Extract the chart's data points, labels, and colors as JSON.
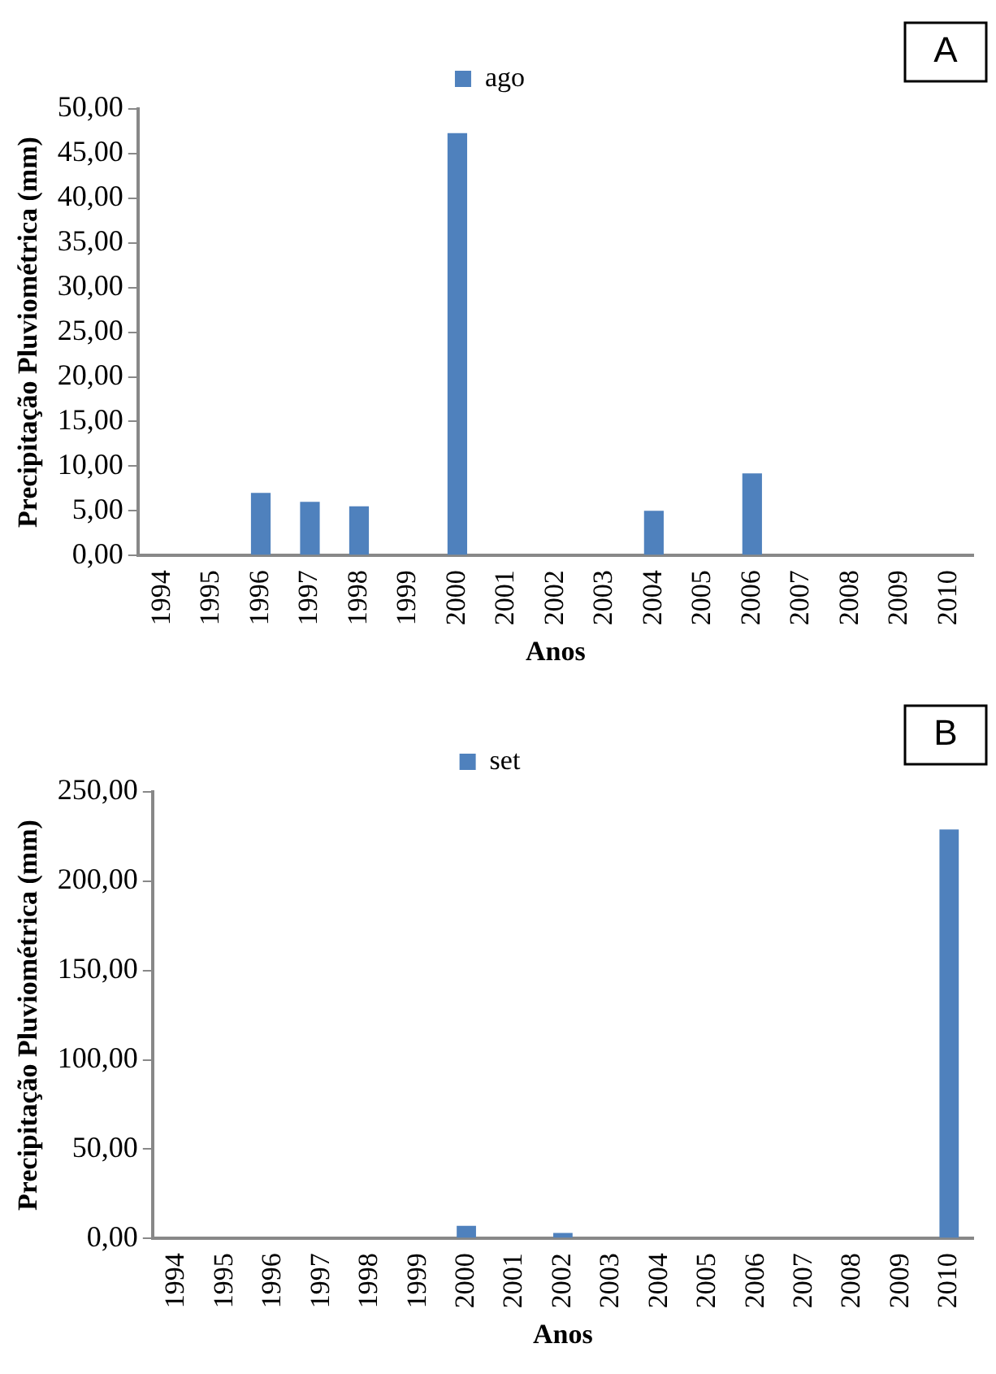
{
  "chart_data": [
    {
      "type": "bar",
      "annotations": [
        "A"
      ],
      "xlabel": "Anos",
      "ylabel": "Precipitação Pluviométrica (mm)",
      "categories": [
        "1994",
        "1995",
        "1996",
        "1997",
        "1998",
        "1999",
        "2000",
        "2001",
        "2002",
        "2003",
        "2004",
        "2005",
        "2006",
        "2007",
        "2008",
        "2009",
        "2010"
      ],
      "series": [
        {
          "name": "ago",
          "color": "#4f81bd",
          "values": [
            0,
            0,
            7.0,
            6.0,
            5.5,
            0,
            47.3,
            0,
            0,
            0,
            5.0,
            0,
            9.2,
            0,
            0,
            0,
            0
          ]
        }
      ],
      "ylim": [
        0,
        50
      ],
      "yticks": [
        {
          "value": 0,
          "label": "0,00"
        },
        {
          "value": 5,
          "label": "5,00"
        },
        {
          "value": 10,
          "label": "10,00"
        },
        {
          "value": 15,
          "label": "15,00"
        },
        {
          "value": 20,
          "label": "20,00"
        },
        {
          "value": 25,
          "label": "25,00"
        },
        {
          "value": 30,
          "label": "30,00"
        },
        {
          "value": 35,
          "label": "35,00"
        },
        {
          "value": 40,
          "label": "40,00"
        },
        {
          "value": 45,
          "label": "45,00"
        },
        {
          "value": 50,
          "label": "50,00"
        }
      ],
      "grid": false,
      "legend": "top"
    },
    {
      "type": "bar",
      "annotations": [
        "B"
      ],
      "xlabel": "Anos",
      "ylabel": "Precipitação Pluviométrica (mm)",
      "categories": [
        "1994",
        "1995",
        "1996",
        "1997",
        "1998",
        "1999",
        "2000",
        "2001",
        "2002",
        "2003",
        "2004",
        "2005",
        "2006",
        "2007",
        "2008",
        "2009",
        "2010"
      ],
      "series": [
        {
          "name": "set",
          "color": "#4f81bd",
          "values": [
            0,
            0,
            0,
            0,
            0,
            0,
            7,
            0,
            3,
            0,
            0,
            0,
            0,
            0,
            0,
            0,
            229
          ]
        }
      ],
      "ylim": [
        0,
        250
      ],
      "yticks": [
        {
          "value": 0,
          "label": "0,00"
        },
        {
          "value": 50,
          "label": "50,00"
        },
        {
          "value": 100,
          "label": "100,00"
        },
        {
          "value": 150,
          "label": "150,00"
        },
        {
          "value": 200,
          "label": "200,00"
        },
        {
          "value": 250,
          "label": "250,00"
        }
      ],
      "grid": false,
      "legend": "top"
    }
  ]
}
